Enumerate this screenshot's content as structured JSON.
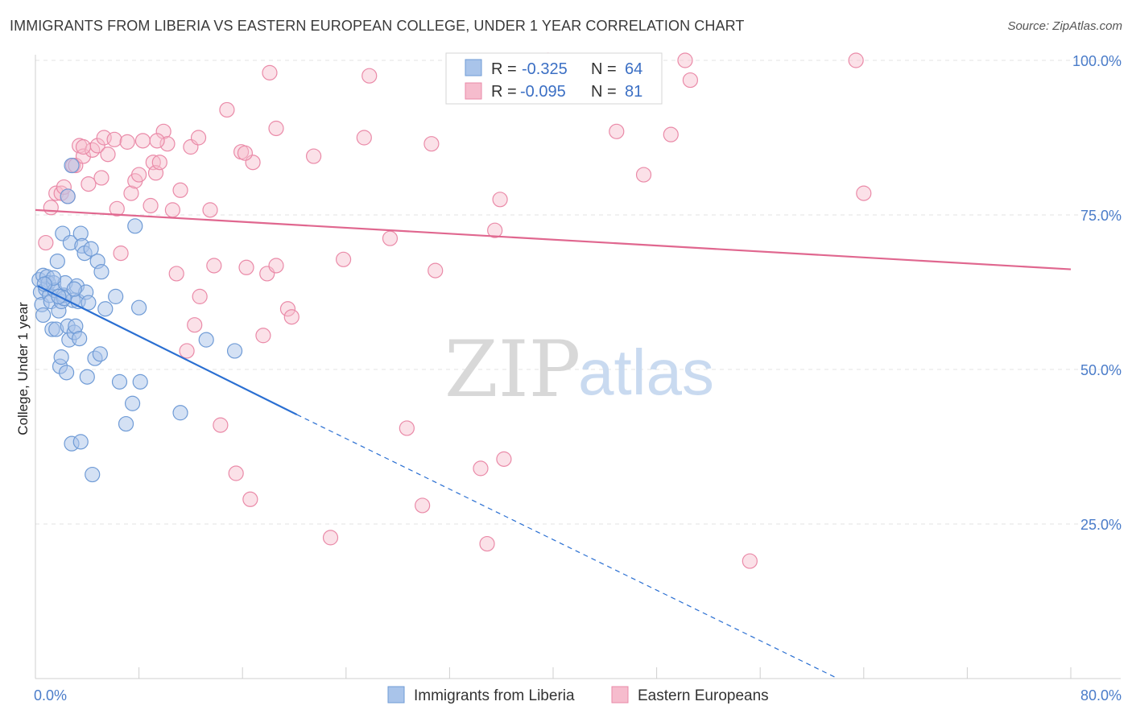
{
  "header": {
    "title": "IMMIGRANTS FROM LIBERIA VS EASTERN EUROPEAN COLLEGE, UNDER 1 YEAR CORRELATION CHART",
    "source": "Source: ZipAtlas.com"
  },
  "watermark": {
    "zip": "ZIP",
    "atlas": "atlas"
  },
  "legend_top": {
    "rows": [
      {
        "r_label": "R =",
        "r_value": "-0.325",
        "n_label": "N =",
        "n_value": "64"
      },
      {
        "r_label": "R =",
        "r_value": "-0.095",
        "n_label": "N =",
        "n_value": "81"
      }
    ]
  },
  "chart_data": {
    "type": "scatter",
    "title": "IMMIGRANTS FROM LIBERIA VS EASTERN EUROPEAN COLLEGE, UNDER 1 YEAR CORRELATION CHART",
    "xlabel": "",
    "ylabel": "College, Under 1 year",
    "xlim": [
      0,
      80
    ],
    "ylim": [
      0,
      105
    ],
    "x_tick_labels": [
      "0.0%",
      "80.0%"
    ],
    "y_ticks": [
      25,
      50,
      75,
      100
    ],
    "y_tick_labels": [
      "25.0%",
      "50.0%",
      "75.0%",
      "100.0%"
    ],
    "grid": true,
    "legend_position": "bottom",
    "colors": {
      "blue_fill": "#a9c4ea",
      "blue_stroke": "#6f9bd6",
      "blue_line": "#2a6fd2",
      "pink_fill": "#f6bccd",
      "pink_stroke": "#ea8aa8",
      "pink_line": "#e0678f"
    },
    "series": [
      {
        "name": "Immigrants from Liberia",
        "r": -0.325,
        "n": 64,
        "trend": {
          "x0": 0.2,
          "y0": 63.5,
          "x1": 20.2,
          "y1": 42.7,
          "x_dash_end": 62,
          "y_dash_end": 0
        },
        "points": [
          [
            0.3,
            64.5
          ],
          [
            0.4,
            62.5
          ],
          [
            0.5,
            60.5
          ],
          [
            0.6,
            58.8
          ],
          [
            0.6,
            65.2
          ],
          [
            0.8,
            63.0
          ],
          [
            0.9,
            65.0
          ],
          [
            1.0,
            64.0
          ],
          [
            1.1,
            62.0
          ],
          [
            1.2,
            61.0
          ],
          [
            1.3,
            56.5
          ],
          [
            1.4,
            64.0
          ],
          [
            1.5,
            62.8
          ],
          [
            1.6,
            56.5
          ],
          [
            1.7,
            67.5
          ],
          [
            1.8,
            59.5
          ],
          [
            1.9,
            50.5
          ],
          [
            2.0,
            61.0
          ],
          [
            2.0,
            52.0
          ],
          [
            2.1,
            72.0
          ],
          [
            2.2,
            62.0
          ],
          [
            2.3,
            64.0
          ],
          [
            2.4,
            49.5
          ],
          [
            2.5,
            57.0
          ],
          [
            2.5,
            78.0
          ],
          [
            2.6,
            54.8
          ],
          [
            2.7,
            70.5
          ],
          [
            2.8,
            38.0
          ],
          [
            2.8,
            83.0
          ],
          [
            2.9,
            61.2
          ],
          [
            3.0,
            56.0
          ],
          [
            3.1,
            57.0
          ],
          [
            3.2,
            63.5
          ],
          [
            3.3,
            61.0
          ],
          [
            3.4,
            55.0
          ],
          [
            3.5,
            72.0
          ],
          [
            3.5,
            38.3
          ],
          [
            3.6,
            70.0
          ],
          [
            3.8,
            68.8
          ],
          [
            3.9,
            62.5
          ],
          [
            4.0,
            48.8
          ],
          [
            4.1,
            60.8
          ],
          [
            4.3,
            69.5
          ],
          [
            4.6,
            51.8
          ],
          [
            4.8,
            67.5
          ],
          [
            5.0,
            52.5
          ],
          [
            5.1,
            65.8
          ],
          [
            5.4,
            59.8
          ],
          [
            4.4,
            33.0
          ],
          [
            6.2,
            61.8
          ],
          [
            6.5,
            48.0
          ],
          [
            7.0,
            41.2
          ],
          [
            7.5,
            44.5
          ],
          [
            7.7,
            73.2
          ],
          [
            8.0,
            60.0
          ],
          [
            8.1,
            48.0
          ],
          [
            11.2,
            43.0
          ],
          [
            13.2,
            54.8
          ],
          [
            15.4,
            53.0
          ],
          [
            1.4,
            64.8
          ],
          [
            0.7,
            63.8
          ],
          [
            2.2,
            61.5
          ],
          [
            3.0,
            63.0
          ],
          [
            1.8,
            61.8
          ]
        ]
      },
      {
        "name": "Eastern Europeans",
        "r": -0.095,
        "n": 81,
        "trend": {
          "x0": 0,
          "y0": 75.8,
          "x1": 80,
          "y1": 66.2
        },
        "points": [
          [
            0.8,
            70.5
          ],
          [
            1.2,
            76.2
          ],
          [
            1.6,
            78.5
          ],
          [
            2.0,
            78.5
          ],
          [
            2.2,
            79.5
          ],
          [
            2.5,
            78.0
          ],
          [
            2.9,
            83.0
          ],
          [
            3.1,
            83.0
          ],
          [
            3.4,
            86.2
          ],
          [
            3.7,
            84.5
          ],
          [
            4.1,
            80.0
          ],
          [
            4.4,
            85.5
          ],
          [
            4.8,
            86.2
          ],
          [
            5.1,
            81.0
          ],
          [
            5.3,
            87.5
          ],
          [
            5.6,
            84.8
          ],
          [
            6.1,
            87.2
          ],
          [
            6.3,
            76.0
          ],
          [
            6.6,
            68.8
          ],
          [
            7.1,
            86.8
          ],
          [
            7.4,
            78.5
          ],
          [
            7.7,
            80.5
          ],
          [
            8.0,
            81.5
          ],
          [
            8.3,
            87.0
          ],
          [
            8.9,
            76.5
          ],
          [
            9.1,
            83.5
          ],
          [
            9.3,
            81.8
          ],
          [
            9.6,
            83.5
          ],
          [
            9.9,
            88.5
          ],
          [
            10.2,
            86.5
          ],
          [
            10.6,
            75.8
          ],
          [
            10.9,
            65.5
          ],
          [
            11.2,
            79.0
          ],
          [
            11.7,
            53.0
          ],
          [
            12.0,
            86.0
          ],
          [
            12.3,
            57.2
          ],
          [
            12.6,
            87.5
          ],
          [
            12.7,
            61.8
          ],
          [
            13.5,
            75.8
          ],
          [
            13.8,
            66.8
          ],
          [
            14.3,
            41.0
          ],
          [
            14.8,
            92.0
          ],
          [
            15.5,
            33.2
          ],
          [
            15.9,
            85.2
          ],
          [
            16.3,
            66.5
          ],
          [
            16.6,
            29.0
          ],
          [
            16.8,
            83.5
          ],
          [
            17.6,
            55.5
          ],
          [
            17.9,
            65.5
          ],
          [
            18.1,
            98.0
          ],
          [
            18.6,
            89.0
          ],
          [
            18.6,
            66.8
          ],
          [
            19.5,
            59.8
          ],
          [
            19.8,
            58.5
          ],
          [
            21.5,
            84.5
          ],
          [
            22.8,
            22.8
          ],
          [
            23.8,
            67.8
          ],
          [
            25.4,
            87.5
          ],
          [
            25.8,
            97.5
          ],
          [
            27.4,
            71.2
          ],
          [
            28.7,
            40.5
          ],
          [
            29.9,
            28.0
          ],
          [
            30.6,
            86.5
          ],
          [
            30.9,
            66.0
          ],
          [
            34.4,
            34.0
          ],
          [
            34.9,
            21.8
          ],
          [
            35.5,
            72.5
          ],
          [
            35.9,
            77.5
          ],
          [
            36.2,
            35.5
          ],
          [
            39.6,
            100.0
          ],
          [
            44.9,
            88.5
          ],
          [
            47.0,
            81.5
          ],
          [
            49.1,
            88.0
          ],
          [
            50.2,
            100.0
          ],
          [
            50.6,
            96.8
          ],
          [
            55.2,
            19.0
          ],
          [
            63.4,
            100.0
          ],
          [
            64.0,
            78.5
          ],
          [
            9.4,
            87.0
          ],
          [
            16.2,
            85.0
          ],
          [
            3.7,
            86.0
          ]
        ]
      }
    ]
  },
  "legend_bottom": {
    "items": [
      {
        "label": "Immigrants from Liberia"
      },
      {
        "label": "Eastern Europeans"
      }
    ]
  }
}
